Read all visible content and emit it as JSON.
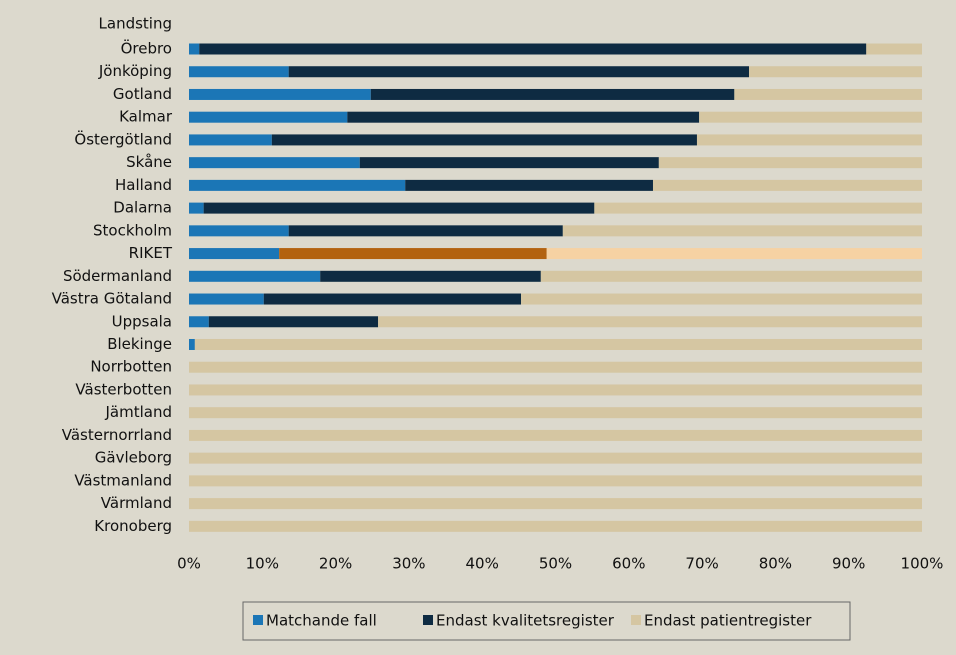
{
  "chart_data": {
    "type": "stacked_barh",
    "y_axis_label": "Landsting",
    "categories": [
      "Örebro",
      "Jönköping",
      "Gotland",
      "Kalmar",
      "Östergötland",
      "Skåne",
      "Halland",
      "Dalarna",
      "Stockholm",
      "RIKET",
      "Södermanland",
      "Västra Götaland",
      "Uppsala",
      "Blekinge",
      "Norrbotten",
      "Västerbotten",
      "Jämtland",
      "Västernorrland",
      "Gävleborg",
      "Västmanland",
      "Värmland",
      "Kronoberg"
    ],
    "series": [
      {
        "name": "Matchande fall",
        "color": "#1b76b6",
        "highlight_color": "#1b76b6",
        "values": [
          1.4,
          13.6,
          24.8,
          21.6,
          11.3,
          23.3,
          29.5,
          2.0,
          13.6,
          12.3,
          17.9,
          10.2,
          2.7,
          0.8,
          0,
          0,
          0,
          0,
          0,
          0,
          0,
          0
        ]
      },
      {
        "name": "Endast kvalitetsregister",
        "color": "#0e2b42",
        "highlight_color": "#b3620f",
        "values": [
          91.0,
          62.8,
          49.6,
          48.0,
          58.0,
          40.8,
          33.8,
          53.3,
          37.4,
          36.5,
          30.1,
          35.1,
          23.1,
          0,
          0,
          0,
          0,
          0,
          0,
          0,
          0,
          0
        ]
      },
      {
        "name": "Endast patientregister",
        "color": "#d5c6a2",
        "highlight_color": "#f6d2a3",
        "values": [
          7.6,
          23.6,
          25.6,
          30.4,
          30.7,
          35.9,
          36.7,
          44.7,
          49.0,
          51.2,
          52.0,
          54.7,
          74.2,
          99.2,
          100,
          100,
          100,
          100,
          100,
          100,
          100,
          100
        ]
      }
    ],
    "highlight_index": 9,
    "xlim": [
      0,
      100
    ],
    "xticks": [
      {
        "value": 0,
        "label": "0%"
      },
      {
        "value": 10,
        "label": "10%"
      },
      {
        "value": 20,
        "label": "20%"
      },
      {
        "value": 30,
        "label": "30%"
      },
      {
        "value": 40,
        "label": "40%"
      },
      {
        "value": 50,
        "label": "50%"
      },
      {
        "value": 60,
        "label": "60%"
      },
      {
        "value": 70,
        "label": "70%"
      },
      {
        "value": 80,
        "label": "80%"
      },
      {
        "value": 90,
        "label": "90%"
      },
      {
        "value": 100,
        "label": "100%"
      }
    ],
    "legend": "bottom"
  }
}
